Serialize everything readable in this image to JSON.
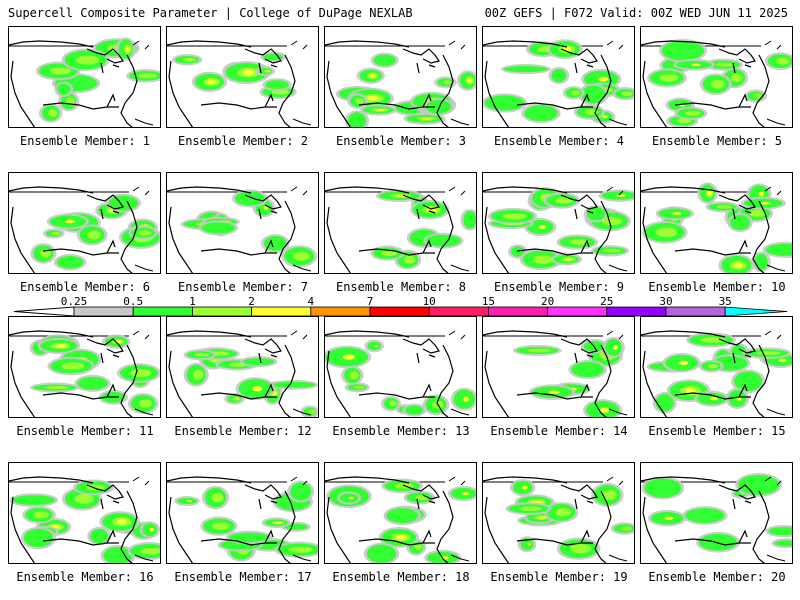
{
  "header": {
    "title": "Supercell Composite Parameter | College of DuPage NEXLAB",
    "run_info": "00Z GEFS | F072 Valid: 00Z WED JUN 11 2025"
  },
  "caption_prefix": "Ensemble Member: ",
  "members": [
    "1",
    "2",
    "3",
    "4",
    "5",
    "6",
    "7",
    "8",
    "9",
    "10",
    "11",
    "12",
    "13",
    "14",
    "15",
    "16",
    "17",
    "18",
    "19",
    "20"
  ],
  "colorbar": {
    "ticks": [
      "0.25",
      "0.5",
      "1",
      "2",
      "4",
      "7",
      "10",
      "15",
      "20",
      "25",
      "30",
      "35"
    ],
    "colors": [
      "#c8c8c8",
      "#32ff32",
      "#9bff32",
      "#ffff32",
      "#ff9600",
      "#ff0000",
      "#ff1e64",
      "#ff1eb4",
      "#ff32ff",
      "#9600ff",
      "#b464dc",
      "#00ffff"
    ]
  },
  "colors": {
    "map_lines": "#000000",
    "background": "#ffffff"
  }
}
